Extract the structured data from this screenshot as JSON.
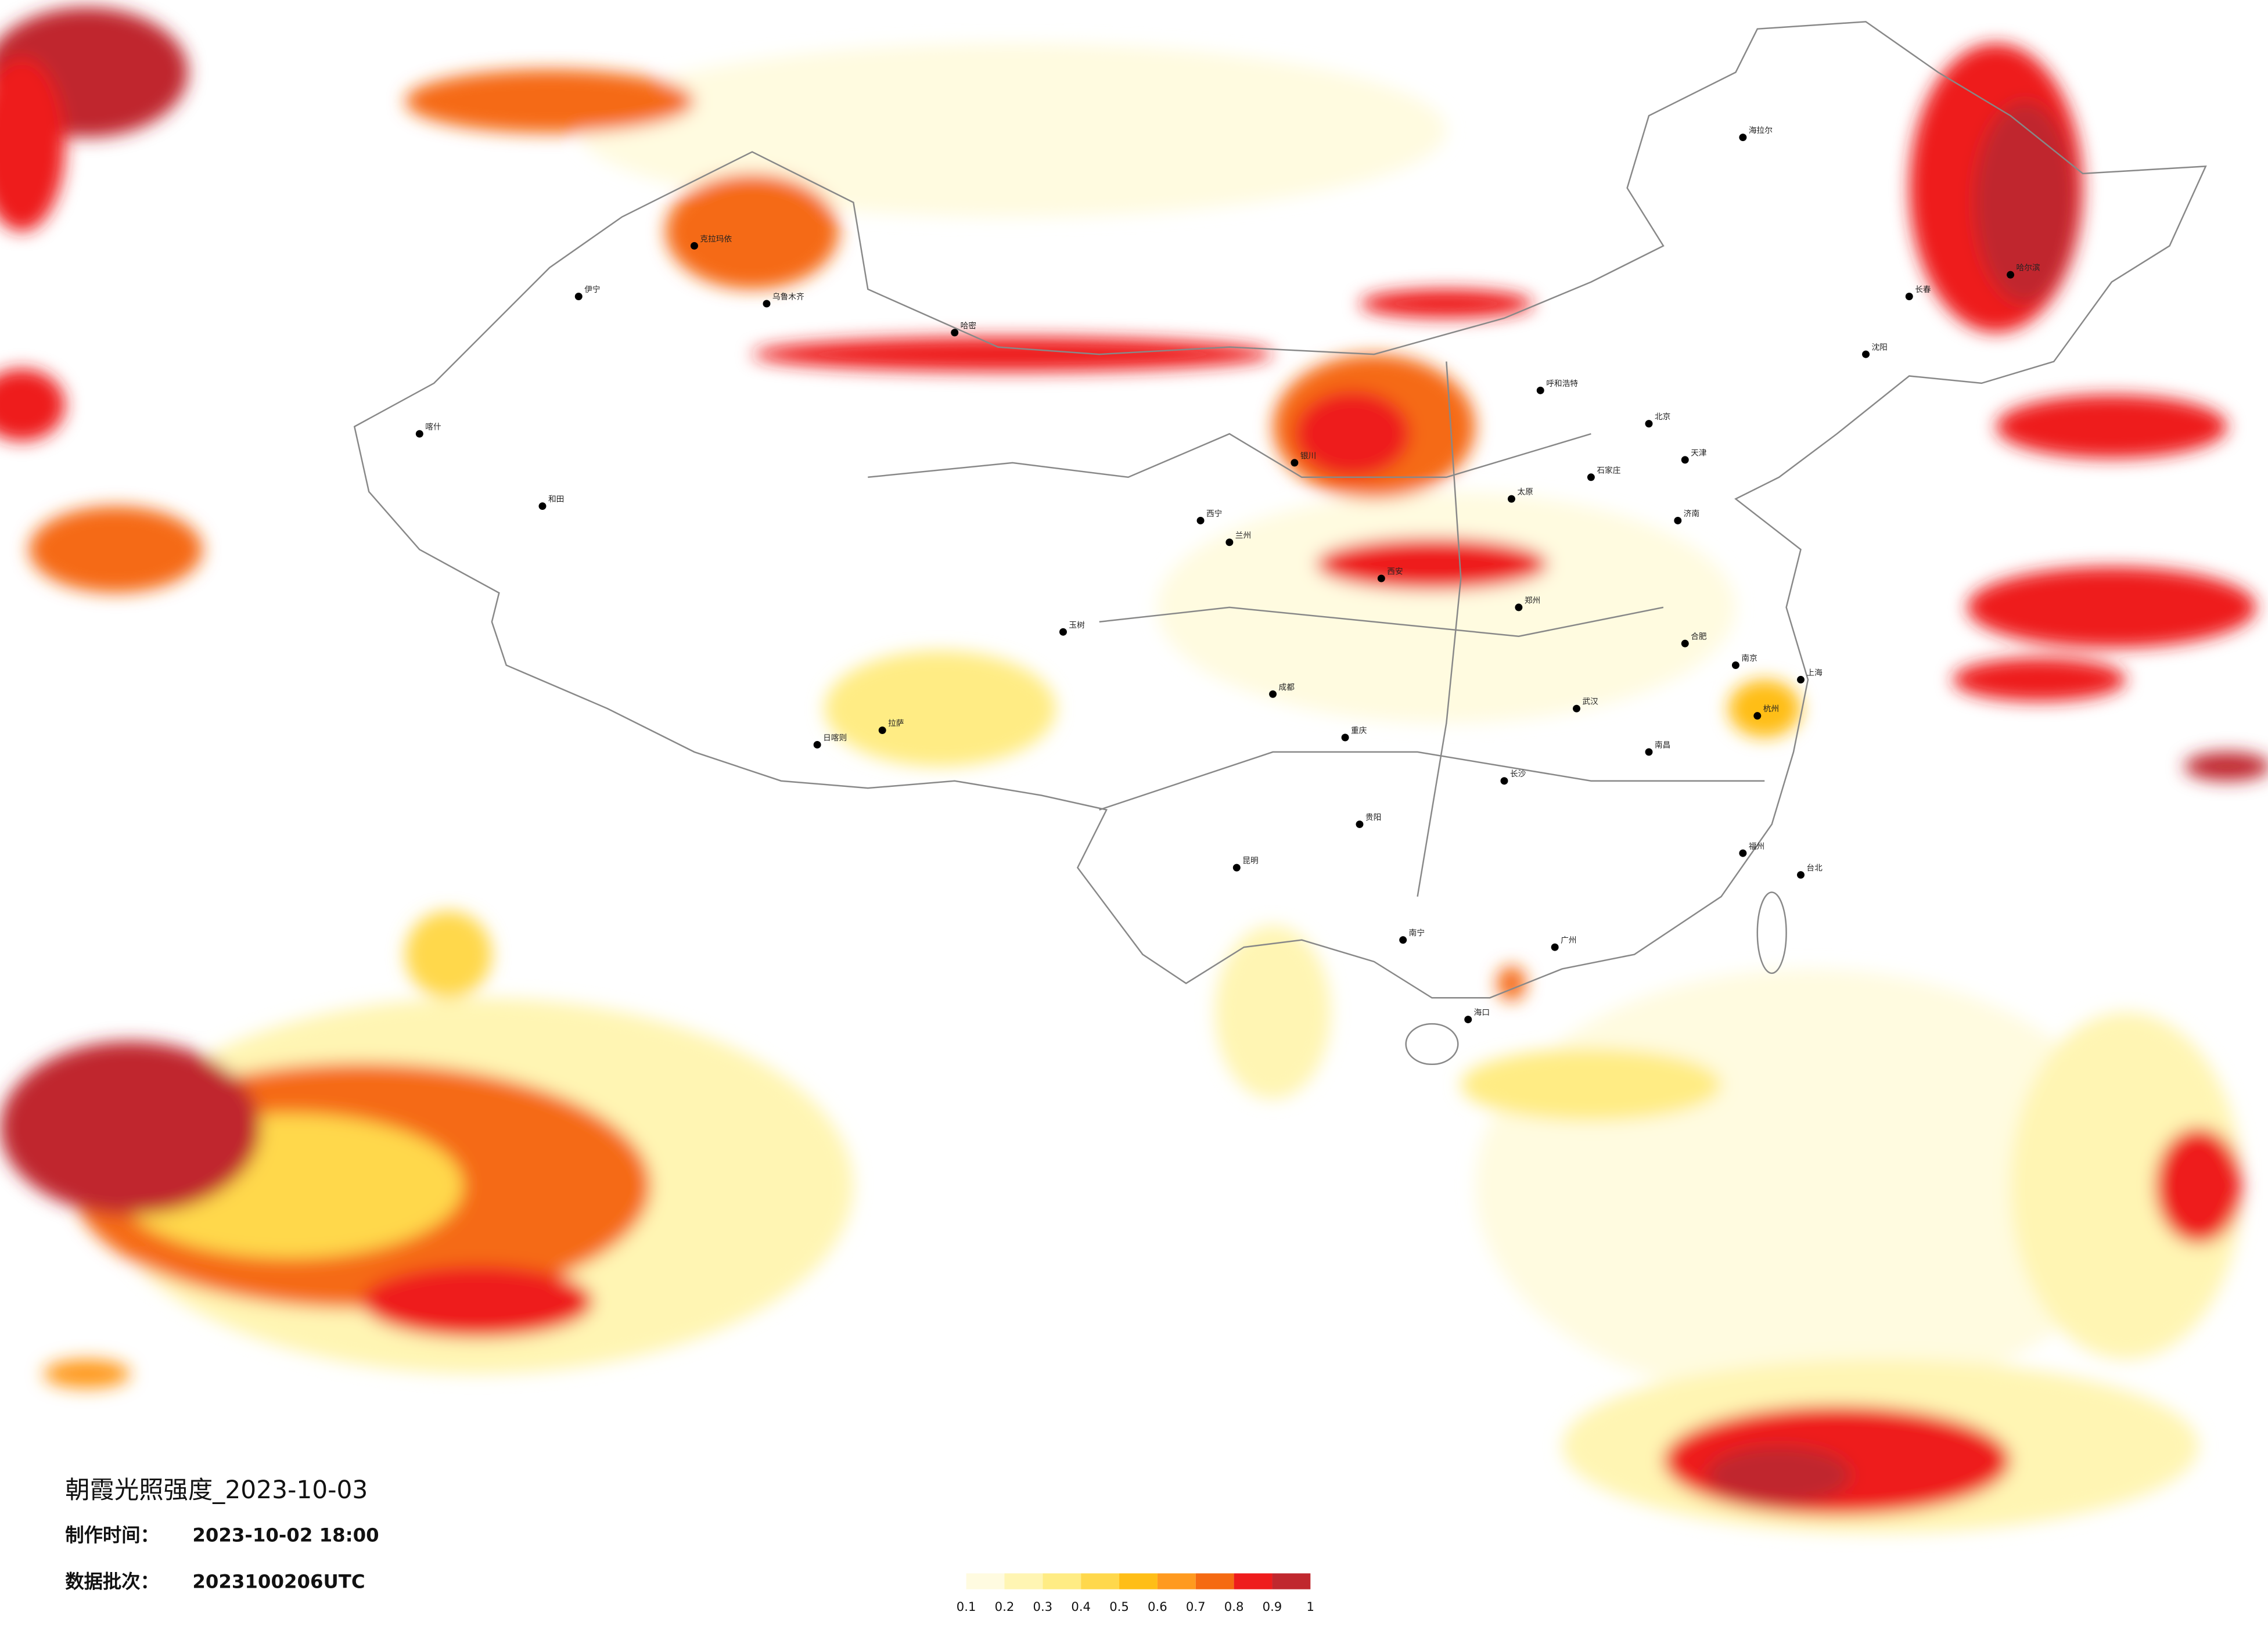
{
  "title": "朝霞光照强度_2023-10-03",
  "made_label": "制作时间：",
  "made_time": "2023-10-02 18:00",
  "batch_label": "数据批次：",
  "batch": "2023100206UTC",
  "legend": {
    "colors": [
      "#fffbe0",
      "#fff5b3",
      "#ffec84",
      "#ffd84c",
      "#ffbe17",
      "#ff9a1f",
      "#f56a12",
      "#ee1c1c",
      "#c0282e"
    ],
    "ticks": [
      0.1,
      0.2,
      0.3,
      0.4,
      0.5,
      0.6,
      0.7,
      0.8,
      0.9,
      1
    ]
  },
  "cities": [
    "北京",
    "天津",
    "上海",
    "广州",
    "武汉",
    "成都",
    "西安",
    "兰州",
    "乌鲁木齐",
    "拉萨",
    "哈尔滨",
    "海拉尔",
    "呼和浩特",
    "昆明",
    "贵阳",
    "南宁",
    "海口",
    "台北",
    "福州",
    "长沙",
    "郑州",
    "济南",
    "南京",
    "杭州",
    "重庆",
    "西宁",
    "银川",
    "太原",
    "石家庄",
    "沈阳",
    "长春",
    "喀什",
    "和田",
    "伊宁",
    "克拉玛依",
    "哈密",
    "玉树",
    "日喀则",
    "南昌",
    "合肥"
  ]
}
